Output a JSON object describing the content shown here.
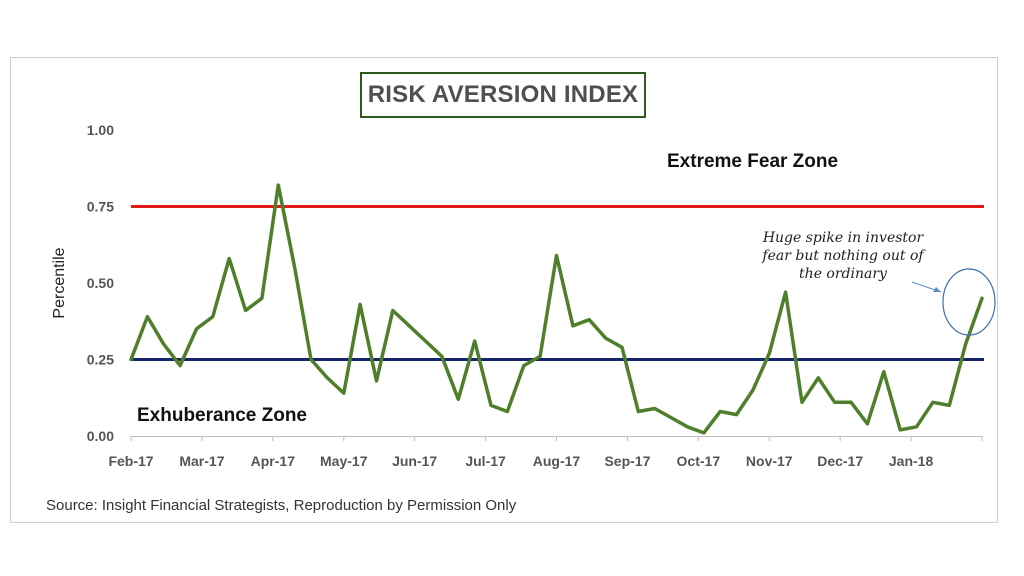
{
  "chart_data": {
    "type": "line",
    "title": "RISK AVERSION INDEX",
    "ylabel": "Percentile",
    "xlabel": "",
    "ylim": [
      0,
      1
    ],
    "yticks": [
      "0.00",
      "0.25",
      "0.50",
      "0.75",
      "1.00"
    ],
    "xticks": [
      "Feb-17",
      "Mar-17",
      "Apr-17",
      "May-17",
      "Jun-17",
      "Jul-17",
      "Aug-17",
      "Sep-17",
      "Oct-17",
      "Nov-17",
      "Dec-17",
      "Jan-18"
    ],
    "grid": false,
    "series": [
      {
        "color": "#4f7f2a",
        "values": [
          0.25,
          0.39,
          0.3,
          0.23,
          0.35,
          0.39,
          0.58,
          0.41,
          0.45,
          0.82,
          0.55,
          0.25,
          0.19,
          0.14,
          0.43,
          0.18,
          0.41,
          0.36,
          0.31,
          0.26,
          0.12,
          0.31,
          0.1,
          0.08,
          0.23,
          0.26,
          0.59,
          0.36,
          0.38,
          0.32,
          0.29,
          0.08,
          0.09,
          0.06,
          0.03,
          0.01,
          0.08,
          0.07,
          0.15,
          0.27,
          0.47,
          0.11,
          0.19,
          0.11,
          0.11,
          0.04,
          0.21,
          0.02,
          0.03,
          0.11,
          0.1,
          0.3,
          0.45
        ]
      }
    ],
    "reference_lines": [
      {
        "value": 0.75,
        "color": "#e41a1a"
      },
      {
        "value": 0.25,
        "color": "#15246b"
      }
    ],
    "annotations": {
      "fear_zone": "Extreme Fear Zone",
      "exuberance_zone": "Exhuberance Zone",
      "note_lines": [
        "Huge spike in investor",
        "fear but nothing out of",
        "the ordinary"
      ]
    },
    "source": "Source: Insight Financial Strategists, Reproduction by Permission Only"
  }
}
